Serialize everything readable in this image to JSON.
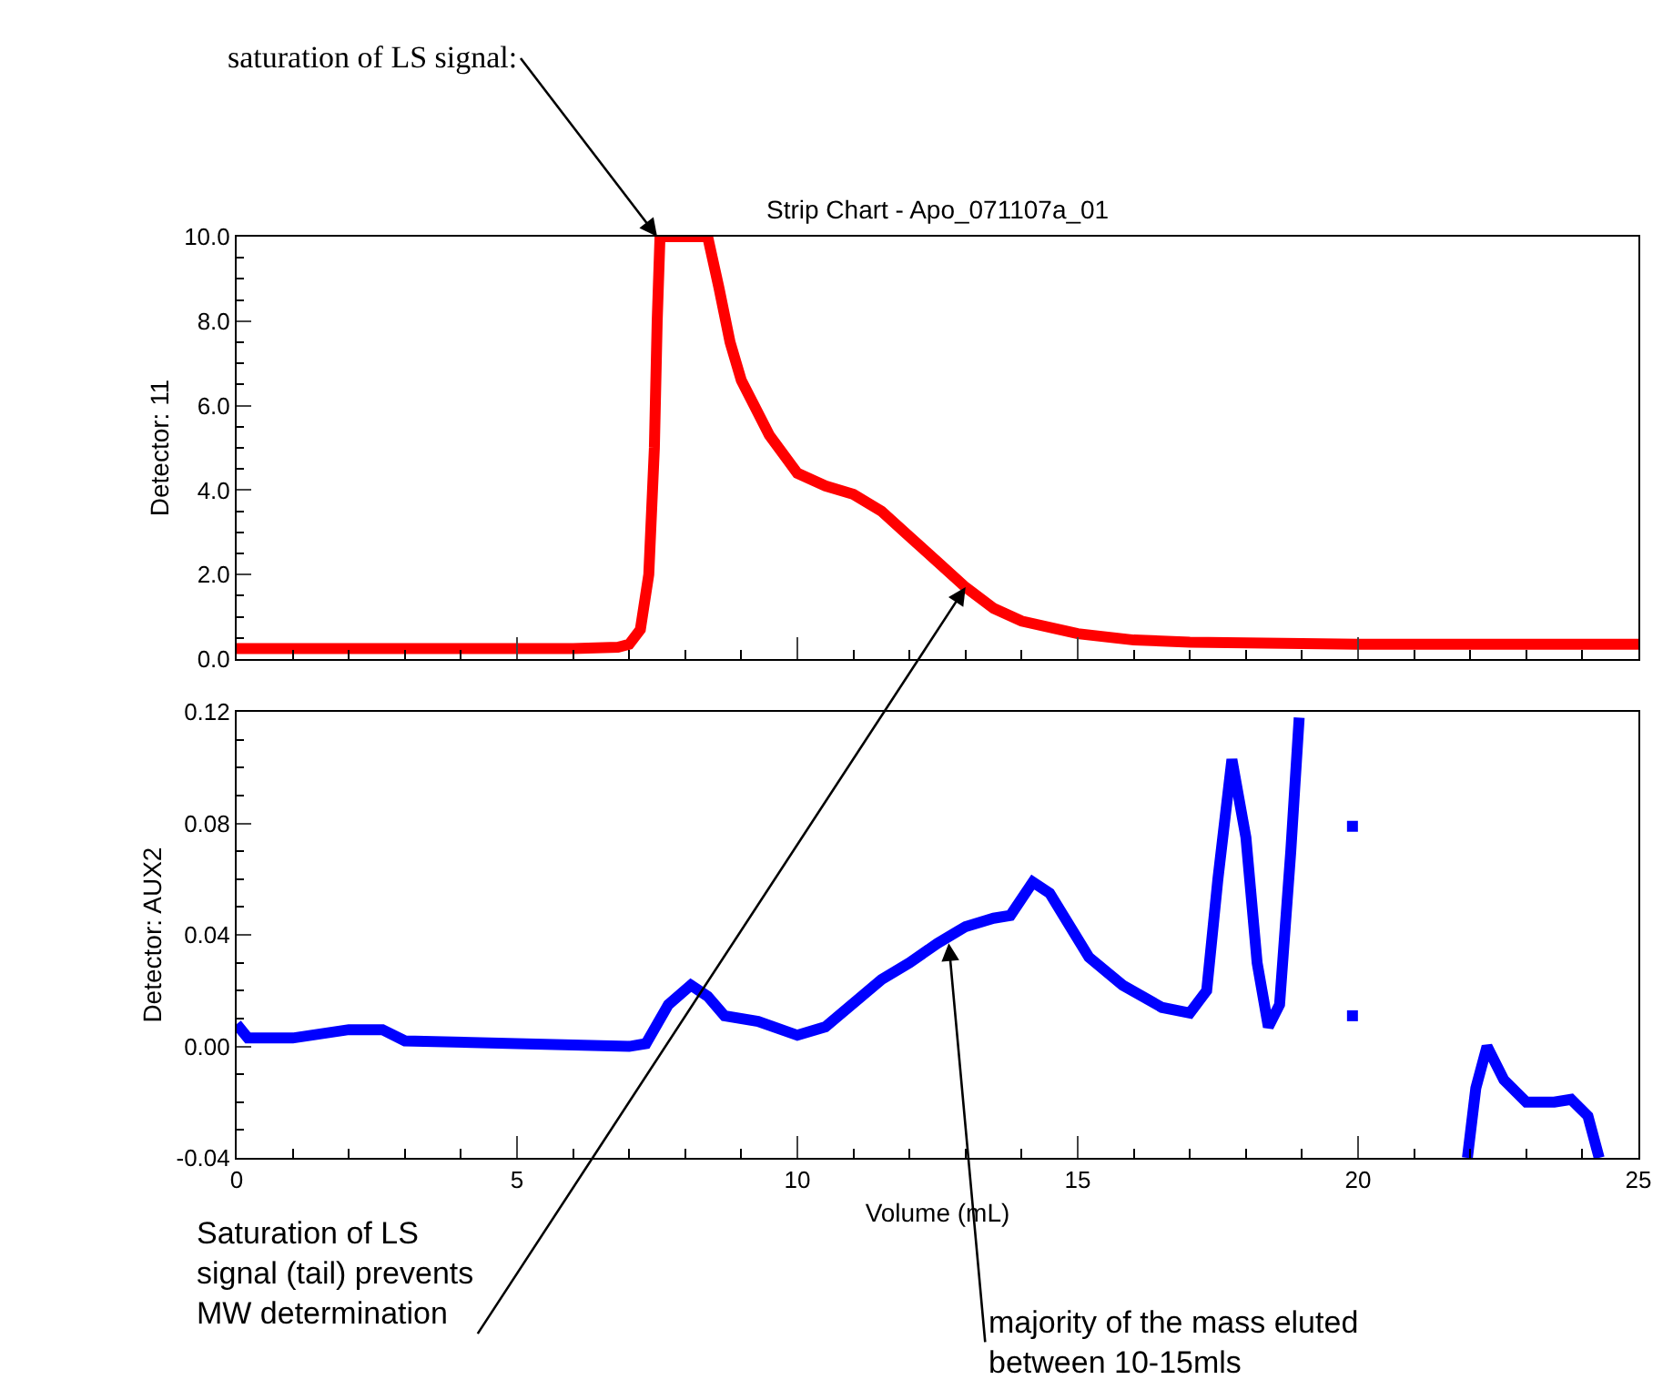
{
  "chart_data": [
    {
      "type": "line",
      "title": "Strip Chart - Apo_071107a_01",
      "ylabel": "Detector: 11",
      "xlim": [
        0,
        25
      ],
      "xticks": [
        0,
        5,
        10,
        15,
        20,
        25
      ],
      "ylim": [
        0,
        10
      ],
      "yticks": [
        {
          "value": 0,
          "label": "0.0"
        },
        {
          "value": 2,
          "label": "2.0"
        },
        {
          "value": 4,
          "label": "4.0"
        },
        {
          "value": 6,
          "label": "6.0"
        },
        {
          "value": 8,
          "label": "8.0"
        },
        {
          "value": 10,
          "label": "10.0"
        }
      ],
      "tick_labels": "y",
      "series": [
        {
          "color": "#ff0000",
          "x": [
            0,
            2,
            4,
            6,
            6.8,
            7.0,
            7.2,
            7.35,
            7.45,
            7.5,
            7.55,
            8.0,
            8.4,
            8.6,
            8.8,
            9.0,
            9.5,
            10,
            10.5,
            11,
            11.5,
            12,
            12.5,
            13,
            13.5,
            14,
            15,
            16,
            17,
            20,
            25
          ],
          "values": [
            0.25,
            0.25,
            0.25,
            0.25,
            0.28,
            0.35,
            0.7,
            2,
            5,
            8,
            10,
            10,
            10,
            8.8,
            7.5,
            6.6,
            5.3,
            4.4,
            4.1,
            3.9,
            3.5,
            2.9,
            2.3,
            1.7,
            1.2,
            0.9,
            0.6,
            0.45,
            0.4,
            0.35,
            0.35
          ]
        }
      ],
      "annotations": [
        {
          "text": "saturation of LS signal:",
          "x": 7.5,
          "y": 10
        },
        {
          "text": "Saturation of LS\nsignal (tail) prevents\nMW determination",
          "x": 13,
          "y": 1.7
        }
      ]
    },
    {
      "type": "line",
      "xlabel": "Volume (mL)",
      "ylabel": "Detector: AUX2",
      "xlim": [
        0,
        25
      ],
      "xticks": [
        0,
        5,
        10,
        15,
        20,
        25
      ],
      "ylim": [
        -0.04,
        0.12
      ],
      "yticks": [
        {
          "value": -0.04,
          "label": "-0.04"
        },
        {
          "value": 0,
          "label": "0.00"
        },
        {
          "value": 0.04,
          "label": "0.04"
        },
        {
          "value": 0.08,
          "label": "0.08"
        },
        {
          "value": 0.12,
          "label": "0.12"
        }
      ],
      "series": [
        {
          "color": "#0000ff",
          "x": [
            0,
            0.2,
            1,
            2,
            2.6,
            3,
            5,
            7,
            7.3,
            7.7,
            8.1,
            8.4,
            8.7,
            9.3,
            10,
            10.5,
            11.5,
            12,
            12.5,
            13,
            13.5,
            13.8,
            14.2,
            14.5,
            15.2,
            15.8,
            16.5,
            17.0,
            17.3,
            17.5,
            17.75,
            18.0,
            18.2,
            18.4,
            18.6,
            18.8,
            18.95,
            19.5,
            21.95,
            22.1,
            22.3,
            22.6,
            23.0,
            23.5,
            23.8,
            24.1,
            24.3
          ],
          "values": [
            0.008,
            0.003,
            0.003,
            0.006,
            0.006,
            0.002,
            0.001,
            0.0,
            0.001,
            0.015,
            0.022,
            0.018,
            0.011,
            0.009,
            0.004,
            0.007,
            0.024,
            0.03,
            0.037,
            0.043,
            0.046,
            0.047,
            0.059,
            0.055,
            0.032,
            0.022,
            0.014,
            0.012,
            0.02,
            0.06,
            0.103,
            0.075,
            0.03,
            0.007,
            0.015,
            0.07,
            0.118,
            null,
            -0.04,
            -0.015,
            0.0,
            -0.012,
            -0.02,
            -0.02,
            -0.019,
            -0.025,
            -0.04
          ]
        },
        {
          "type": "scatter",
          "marker": "square",
          "color": "#0000ff",
          "x": [
            19.9,
            19.9
          ],
          "values": [
            0.079,
            0.011
          ]
        }
      ],
      "annotations": [
        {
          "text": "majority of the mass eluted\nbetween 10-15mls",
          "x": 12.7,
          "y": 0.037
        }
      ]
    }
  ]
}
